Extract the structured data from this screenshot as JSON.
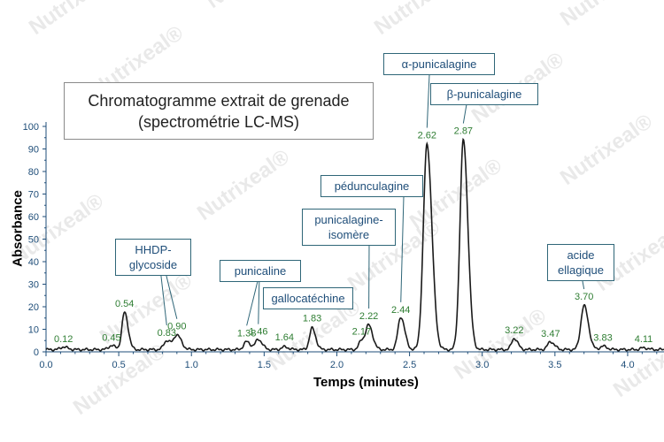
{
  "watermark": "Nutrixeal®",
  "colors": {
    "trace": "#1a1a1a",
    "peak_label": "#2e7d32",
    "axis": "#1f4e79",
    "box_border": "#2f6678",
    "box_text": "#1f4e79"
  },
  "chart_data": {
    "type": "line",
    "title_line1": "Chromatogramme extrait de grenade",
    "title_line2": "(spectrométrie LC-MS)",
    "xlabel": "Temps (minutes)",
    "ylabel": "Absorbance",
    "xlim": [
      0.0,
      4.25
    ],
    "ylim": [
      0,
      100
    ],
    "xticks": [
      "0.0",
      "0.5",
      "1.0",
      "1.5",
      "2.0",
      "2.5",
      "3.0",
      "3.5",
      "4.0"
    ],
    "yticks": [
      "0",
      "10",
      "20",
      "30",
      "40",
      "50",
      "60",
      "70",
      "80",
      "90",
      "100"
    ],
    "peaks": [
      {
        "t": 0.12,
        "label": "0.12",
        "h": 1.2,
        "w": 0.02
      },
      {
        "t": 0.45,
        "label": "0.45",
        "h": 1.8,
        "w": 0.02
      },
      {
        "t": 0.54,
        "label": "0.54",
        "h": 16.5,
        "w": 0.018
      },
      {
        "t": 0.83,
        "label": "0.83",
        "h": 4.0,
        "w": 0.02
      },
      {
        "t": 0.9,
        "label": "0.90",
        "h": 6.5,
        "w": 0.022
      },
      {
        "t": 1.38,
        "label": "1.38",
        "h": 3.5,
        "w": 0.02
      },
      {
        "t": 1.46,
        "label": "1.46",
        "h": 4.5,
        "w": 0.02
      },
      {
        "t": 1.64,
        "label": "1.64",
        "h": 1.2,
        "w": 0.02
      },
      {
        "t": 1.83,
        "label": "1.83",
        "h": 9.5,
        "w": 0.018
      },
      {
        "t": 2.17,
        "label": "2.17",
        "h": 4.0,
        "w": 0.018
      },
      {
        "t": 2.22,
        "label": "2.22",
        "h": 10.5,
        "w": 0.02
      },
      {
        "t": 2.44,
        "label": "2.44",
        "h": 14.5,
        "w": 0.02
      },
      {
        "t": 2.62,
        "label": "2.62",
        "h": 91,
        "w": 0.025
      },
      {
        "t": 2.87,
        "label": "2.87",
        "h": 93,
        "w": 0.023
      },
      {
        "t": 3.22,
        "label": "3.22",
        "h": 5.0,
        "w": 0.018
      },
      {
        "t": 3.47,
        "label": "3.47",
        "h": 3.5,
        "w": 0.02
      },
      {
        "t": 3.7,
        "label": "3.70",
        "h": 19.5,
        "w": 0.022
      },
      {
        "t": 3.83,
        "label": "3.83",
        "h": 1.5,
        "w": 0.02
      },
      {
        "t": 4.11,
        "label": "4.11",
        "h": 0.8,
        "w": 0.02
      }
    ],
    "annotations": [
      {
        "line1": "HHDP-",
        "line2": "glycoside"
      },
      {
        "line1": "punicaline",
        "line2": ""
      },
      {
        "line1": "gallocatéchine",
        "line2": ""
      },
      {
        "line1": "punicalagine-",
        "line2": "isomère"
      },
      {
        "line1": "pédunculagine",
        "line2": ""
      },
      {
        "line1": "α-punicalagine",
        "line2": ""
      },
      {
        "line1": "β-punicalagine",
        "line2": ""
      },
      {
        "line1": "acide",
        "line2": "ellagique"
      }
    ]
  }
}
